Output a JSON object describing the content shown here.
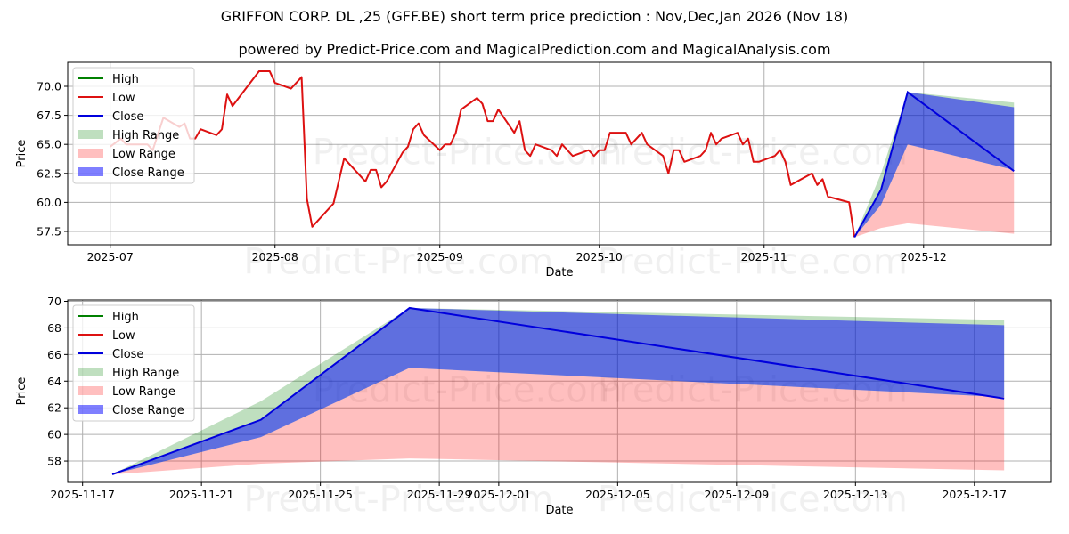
{
  "title": "GRIFFON CORP. DL ,25 (GFF.BE) short term price prediction : Nov,Dec,Jan 2026 (Nov 18)",
  "subtitle": "powered by Predict-Price.com and MagicalPrediction.com and MagicalAnalysis.com",
  "watermark": "Predict-Price.com",
  "colors": {
    "high": "#008000",
    "low": "#dd1111",
    "close": "#0000dd",
    "high_range": "rgba(0,128,0,0.25)",
    "low_range": "rgba(255,0,0,0.25)",
    "close_range": "rgba(0,0,255,0.5)"
  },
  "chart_data": [
    {
      "type": "line",
      "name": "history",
      "xlabel": "Date",
      "ylabel": "Price",
      "xlim": [
        "2025-06-23",
        "2025-12-25"
      ],
      "ylim": [
        56.35,
        72.07
      ],
      "xticks": [
        [
          "2025-07-01",
          "2025-07"
        ],
        [
          "2025-08-01",
          "2025-08"
        ],
        [
          "2025-09-01",
          "2025-09"
        ],
        [
          "2025-10-01",
          "2025-10"
        ],
        [
          "2025-11-01",
          "2025-11"
        ],
        [
          "2025-12-01",
          "2025-12"
        ]
      ],
      "yticks": [
        [
          57.5,
          "57.5"
        ],
        [
          60,
          "60.0"
        ],
        [
          62.5,
          "62.5"
        ],
        [
          65,
          "65.0"
        ],
        [
          67.5,
          "67.5"
        ],
        [
          70,
          "70.0"
        ]
      ],
      "grid": true,
      "legend": {
        "position": "top-left",
        "entries": [
          "High",
          "Low",
          "Close",
          "High Range",
          "Low Range",
          "Close Range"
        ]
      },
      "low_series": [
        [
          "2025-07-01",
          64.8
        ],
        [
          "2025-07-03",
          65.5
        ],
        [
          "2025-07-04",
          65.0
        ],
        [
          "2025-07-08",
          65.0
        ],
        [
          "2025-07-09",
          64.5
        ],
        [
          "2025-07-11",
          67.3
        ],
        [
          "2025-07-14",
          66.5
        ],
        [
          "2025-07-15",
          66.8
        ],
        [
          "2025-07-16",
          65.5
        ],
        [
          "2025-07-17",
          65.5
        ],
        [
          "2025-07-18",
          66.3
        ],
        [
          "2025-07-21",
          65.8
        ],
        [
          "2025-07-22",
          66.3
        ],
        [
          "2025-07-23",
          69.3
        ],
        [
          "2025-07-24",
          68.3
        ],
        [
          "2025-07-29",
          71.3
        ],
        [
          "2025-07-31",
          71.3
        ],
        [
          "2025-08-01",
          70.3
        ],
        [
          "2025-08-04",
          69.8
        ],
        [
          "2025-08-06",
          70.8
        ],
        [
          "2025-08-07",
          60.3
        ],
        [
          "2025-08-08",
          57.9
        ],
        [
          "2025-08-12",
          59.9
        ],
        [
          "2025-08-14",
          63.8
        ],
        [
          "2025-08-18",
          61.8
        ],
        [
          "2025-08-19",
          62.8
        ],
        [
          "2025-08-20",
          62.8
        ],
        [
          "2025-08-21",
          61.3
        ],
        [
          "2025-08-22",
          61.8
        ],
        [
          "2025-08-25",
          64.3
        ],
        [
          "2025-08-26",
          64.8
        ],
        [
          "2025-08-27",
          66.3
        ],
        [
          "2025-08-28",
          66.8
        ],
        [
          "2025-08-29",
          65.8
        ],
        [
          "2025-09-01",
          64.5
        ],
        [
          "2025-09-02",
          65.0
        ],
        [
          "2025-09-03",
          65.0
        ],
        [
          "2025-09-04",
          66.0
        ],
        [
          "2025-09-05",
          68.0
        ],
        [
          "2025-09-08",
          69.0
        ],
        [
          "2025-09-09",
          68.5
        ],
        [
          "2025-09-10",
          67.0
        ],
        [
          "2025-09-11",
          67.0
        ],
        [
          "2025-09-12",
          68.0
        ],
        [
          "2025-09-15",
          66.0
        ],
        [
          "2025-09-16",
          67.0
        ],
        [
          "2025-09-17",
          64.5
        ],
        [
          "2025-09-18",
          64.0
        ],
        [
          "2025-09-19",
          65.0
        ],
        [
          "2025-09-22",
          64.5
        ],
        [
          "2025-09-23",
          64.0
        ],
        [
          "2025-09-24",
          65.0
        ],
        [
          "2025-09-26",
          64.0
        ],
        [
          "2025-09-29",
          64.5
        ],
        [
          "2025-09-30",
          64.0
        ],
        [
          "2025-10-01",
          64.5
        ],
        [
          "2025-10-02",
          64.5
        ],
        [
          "2025-10-03",
          66.0
        ],
        [
          "2025-10-06",
          66.0
        ],
        [
          "2025-10-07",
          65.0
        ],
        [
          "2025-10-09",
          66.0
        ],
        [
          "2025-10-10",
          65.0
        ],
        [
          "2025-10-13",
          64.0
        ],
        [
          "2025-10-14",
          62.5
        ],
        [
          "2025-10-15",
          64.5
        ],
        [
          "2025-10-16",
          64.5
        ],
        [
          "2025-10-17",
          63.5
        ],
        [
          "2025-10-20",
          64.0
        ],
        [
          "2025-10-21",
          64.5
        ],
        [
          "2025-10-22",
          66.0
        ],
        [
          "2025-10-23",
          65.0
        ],
        [
          "2025-10-24",
          65.5
        ],
        [
          "2025-10-27",
          66.0
        ],
        [
          "2025-10-28",
          65.0
        ],
        [
          "2025-10-29",
          65.5
        ],
        [
          "2025-10-30",
          63.5
        ],
        [
          "2025-10-31",
          63.5
        ],
        [
          "2025-11-03",
          64.0
        ],
        [
          "2025-11-04",
          64.5
        ],
        [
          "2025-11-05",
          63.5
        ],
        [
          "2025-11-06",
          61.5
        ],
        [
          "2025-11-10",
          62.5
        ],
        [
          "2025-11-11",
          61.5
        ],
        [
          "2025-11-12",
          62.0
        ],
        [
          "2025-11-13",
          60.5
        ],
        [
          "2025-11-17",
          60.0
        ],
        [
          "2025-11-18",
          57.0
        ]
      ]
    },
    {
      "type": "area",
      "name": "forecast",
      "xlabel": "Date",
      "ylabel": "Price",
      "xlim": [
        "2025-11-16T12:00",
        "2025-12-19T14:00"
      ],
      "ylim": [
        56.4,
        70.1
      ],
      "xticks": [
        [
          "2025-11-17",
          "2025-11-17"
        ],
        [
          "2025-11-21",
          "2025-11-21"
        ],
        [
          "2025-11-25",
          "2025-11-25"
        ],
        [
          "2025-11-29",
          "2025-11-29"
        ],
        [
          "2025-12-01",
          "2025-12-01"
        ],
        [
          "2025-12-05",
          "2025-12-05"
        ],
        [
          "2025-12-09",
          "2025-12-09"
        ],
        [
          "2025-12-13",
          "2025-12-13"
        ],
        [
          "2025-12-17",
          "2025-12-17"
        ]
      ],
      "yticks": [
        [
          58,
          "58"
        ],
        [
          60,
          "60"
        ],
        [
          62,
          "62"
        ],
        [
          64,
          "64"
        ],
        [
          66,
          "66"
        ],
        [
          68,
          "68"
        ],
        [
          70,
          "70"
        ]
      ],
      "grid": true,
      "legend": {
        "position": "top-left",
        "entries": [
          "High",
          "Low",
          "Close",
          "High Range",
          "Low Range",
          "Close Range"
        ]
      }
    }
  ],
  "forecast": {
    "dates": [
      "2025-11-18",
      "2025-11-23",
      "2025-11-28",
      "2025-12-18"
    ],
    "close": [
      57.0,
      61.1,
      69.5,
      62.7
    ],
    "high_range": {
      "upper": [
        57.0,
        62.5,
        69.5,
        68.6
      ],
      "lower": [
        57.0,
        59.8,
        65.0,
        62.8
      ]
    },
    "close_range": {
      "upper": [
        57.0,
        61.1,
        69.5,
        68.2
      ],
      "lower": [
        57.0,
        59.8,
        65.0,
        62.8
      ]
    },
    "low_range": {
      "upper": [
        57.0,
        59.8,
        65.0,
        62.8
      ],
      "lower": [
        57.0,
        57.8,
        58.2,
        57.3
      ]
    }
  }
}
